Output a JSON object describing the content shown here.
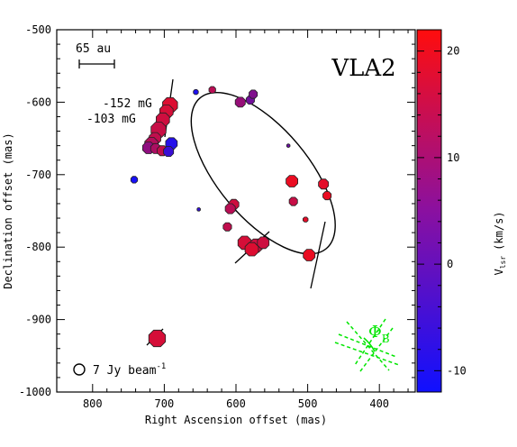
{
  "chart_data": {
    "type": "scatter",
    "title": "VLA2",
    "xlabel": "Right Ascension offset (mas)",
    "ylabel": "Declination offset (mas)",
    "xlim": [
      850,
      350
    ],
    "ylim": [
      -1000,
      -500
    ],
    "xticks": [
      800,
      700,
      600,
      500,
      400
    ],
    "yticks": [
      -500,
      -600,
      -700,
      -800,
      -900,
      -1000
    ],
    "scalebar_label": "65 au",
    "field_labels": [
      "-152 mG",
      "-103 mG"
    ],
    "beam_label": "7 Jy beam",
    "beam_exponent": "-1",
    "field_angle_symbol": "Φ",
    "field_angle_subscript": "B",
    "field_angle_color": "#00e600",
    "colorbar": {
      "label": "V",
      "label_subscript": "lsr",
      "label_unit": "(km/s)",
      "range": [
        -12,
        22
      ],
      "ticks": [
        -10,
        0,
        10,
        20
      ],
      "colors": [
        "#1010ff",
        "#ff0d0d"
      ]
    },
    "ellipse": {
      "center": [
        562,
        -698
      ],
      "semi_major": 137,
      "semi_minor": 63,
      "pa_deg": 40
    },
    "points": [
      {
        "x": 692,
        "y": -604,
        "v": 17,
        "s": 9
      },
      {
        "x": 697,
        "y": -613,
        "v": 16,
        "s": 8
      },
      {
        "x": 702,
        "y": -624,
        "v": 15,
        "s": 8
      },
      {
        "x": 708,
        "y": -638,
        "v": 14,
        "s": 9
      },
      {
        "x": 713,
        "y": -650,
        "v": 13,
        "s": 7
      },
      {
        "x": 718,
        "y": -658,
        "v": 11,
        "s": 8
      },
      {
        "x": 722,
        "y": -663,
        "v": 6,
        "s": 7
      },
      {
        "x": 712,
        "y": -664,
        "v": 10,
        "s": 6
      },
      {
        "x": 703,
        "y": -667,
        "v": 13,
        "s": 6
      },
      {
        "x": 690,
        "y": -657,
        "v": -9,
        "s": 7
      },
      {
        "x": 694,
        "y": -668,
        "v": -6,
        "s": 6
      },
      {
        "x": 742,
        "y": -707,
        "v": -11,
        "s": 4
      },
      {
        "x": 710,
        "y": -926,
        "v": 16,
        "s": 10
      },
      {
        "x": 656,
        "y": -586,
        "v": -10,
        "s": 3
      },
      {
        "x": 633,
        "y": -583,
        "v": 12,
        "s": 4
      },
      {
        "x": 594,
        "y": -600,
        "v": 7,
        "s": 6
      },
      {
        "x": 580,
        "y": -597,
        "v": 2,
        "s": 5
      },
      {
        "x": 576,
        "y": -589,
        "v": 4,
        "s": 5
      },
      {
        "x": 527,
        "y": -660,
        "v": 1,
        "s": 2
      },
      {
        "x": 522,
        "y": -709,
        "v": 19,
        "s": 7
      },
      {
        "x": 520,
        "y": -737,
        "v": 14,
        "s": 5
      },
      {
        "x": 478,
        "y": -713,
        "v": 18,
        "s": 6
      },
      {
        "x": 473,
        "y": -729,
        "v": 19,
        "s": 5
      },
      {
        "x": 503,
        "y": -762,
        "v": 18,
        "s": 3
      },
      {
        "x": 498,
        "y": -811,
        "v": 19,
        "s": 7
      },
      {
        "x": 603,
        "y": -741,
        "v": 15,
        "s": 6
      },
      {
        "x": 608,
        "y": -747,
        "v": 12,
        "s": 6
      },
      {
        "x": 612,
        "y": -772,
        "v": 13,
        "s": 5
      },
      {
        "x": 588,
        "y": -794,
        "v": 16,
        "s": 8
      },
      {
        "x": 572,
        "y": -798,
        "v": 15,
        "s": 8
      },
      {
        "x": 578,
        "y": -803,
        "v": 17,
        "s": 8
      },
      {
        "x": 562,
        "y": -794,
        "v": 15,
        "s": 7
      },
      {
        "x": 652,
        "y": -748,
        "v": -7,
        "s": 2
      }
    ]
  }
}
